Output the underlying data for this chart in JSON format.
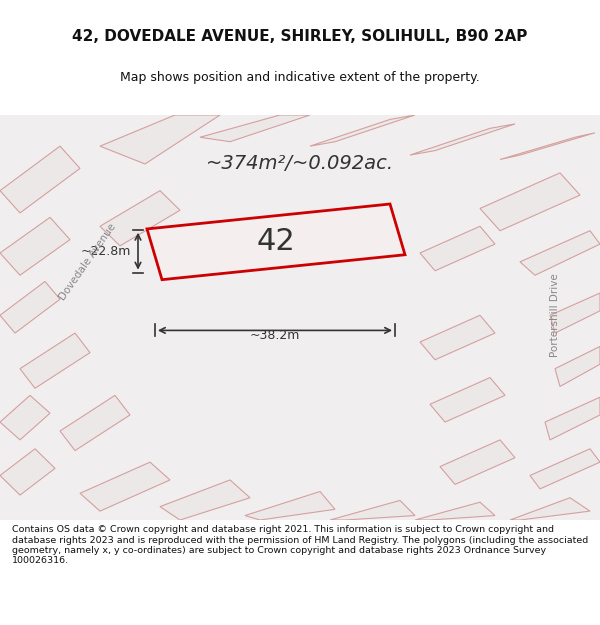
{
  "title_line1": "42, DOVEDALE AVENUE, SHIRLEY, SOLIHULL, B90 2AP",
  "title_line2": "Map shows position and indicative extent of the property.",
  "footer_text": "Contains OS data © Crown copyright and database right 2021. This information is subject to Crown copyright and database rights 2023 and is reproduced with the permission of HM Land Registry. The polygons (including the associated geometry, namely x, y co-ordinates) are subject to Crown copyright and database rights 2023 Ordnance Survey 100026316.",
  "area_label": "~374m²/~0.092ac.",
  "property_number": "42",
  "dim_width": "~38.2m",
  "dim_height": "~22.8m",
  "map_bg": "#f0eeee",
  "plot_color": "#f5f0f0",
  "plot_edge_color": "#cc0000",
  "building_outline_color": "#e8a0a0",
  "road_label": "Dovedale Avenue",
  "road_label2": "Portershill Drive",
  "background_color": "#ffffff"
}
